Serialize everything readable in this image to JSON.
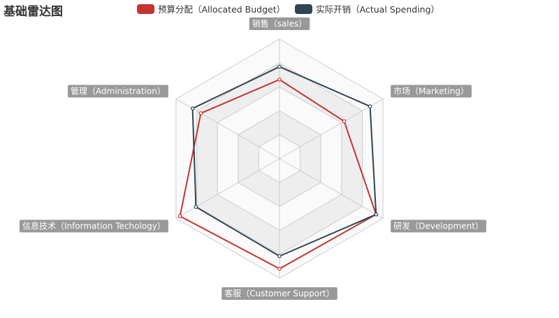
{
  "chart_data": {
    "type": "radar",
    "title": "基础雷达图",
    "legend_position": "top-center",
    "indicators": [
      {
        "name": "销售（sales）",
        "max": 6500
      },
      {
        "name": "市场（Marketing）",
        "max": 16000
      },
      {
        "name": "研发（Development）",
        "max": 30000
      },
      {
        "name": "客服（Customer Support）",
        "max": 38000
      },
      {
        "name": "信息技术（Information Techology）",
        "max": 52000
      },
      {
        "name": "管理（Administration）",
        "max": 25000
      }
    ],
    "series": [
      {
        "name": "预算分配（Allocated Budget）",
        "color": "#c23531",
        "values": [
          4300,
          10000,
          28000,
          35000,
          50000,
          19000
        ]
      },
      {
        "name": "实际开销（Actual Spending）",
        "color": "#2f4554",
        "values": [
          5000,
          14000,
          28000,
          31000,
          42000,
          21000
        ]
      }
    ],
    "split_number": 5,
    "split_area_colors": [
      "#fafafa",
      "#eeeeee"
    ],
    "axis_line_color": "#cccccc",
    "label_background": "#999999"
  }
}
